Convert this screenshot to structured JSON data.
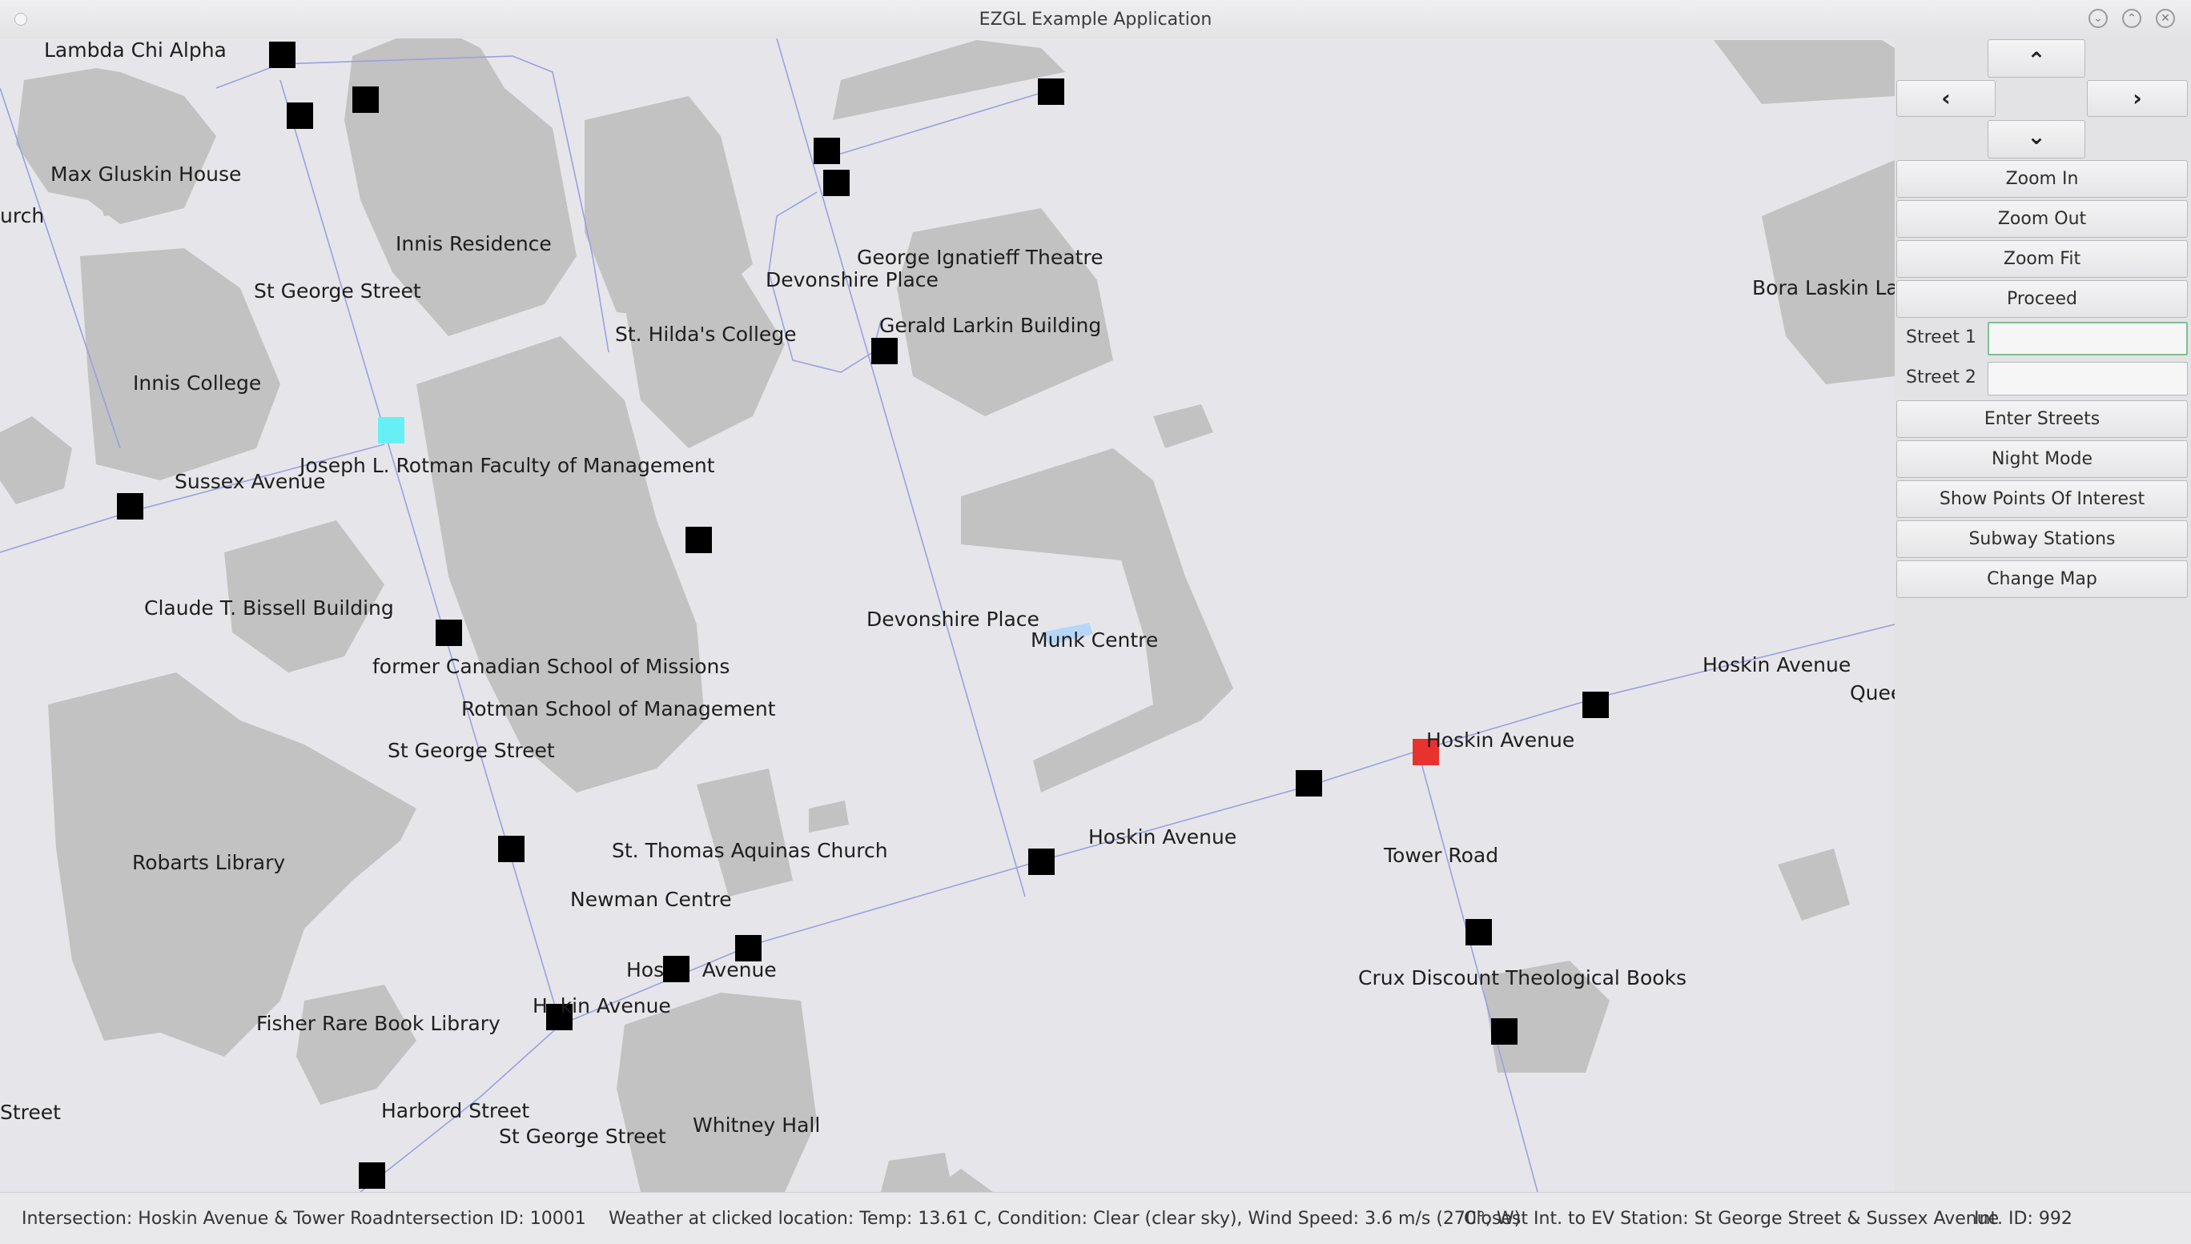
{
  "window": {
    "title": "EZGL Example Application"
  },
  "map": {
    "labels": {
      "lambda_chi_alpha": "Lambda Chi Alpha",
      "max_gluskin_house": "Max Gluskin House",
      "urch": "urch",
      "innis_residence": "Innis Residence",
      "st_george_street_1": "St George Street",
      "innis_college": "Innis College",
      "st_hildas_college": "St. Hilda's College",
      "george_ignatieff_theatre": "George Ignatieff Theatre",
      "devonshire_place_1": "Devonshire Place",
      "gerald_larkin_building": "Gerald Larkin Building",
      "bora_laskin": "Bora Laskin Law",
      "rotman_faculty": "Joseph L. Rotman Faculty of Management",
      "sussex_avenue": "Sussex Avenue",
      "claude_bissell": "Claude T. Bissell Building",
      "devonshire_place_2": "Devonshire Place",
      "munk_centre": "Munk Centre",
      "former_canadian_school": "former Canadian School of Missions",
      "hoskin_avenue_1": "Hoskin Avenue",
      "queens": "Quee",
      "hoskin_avenue_2": "Hoskin Avenue",
      "rotman_school": "Rotman School of Management",
      "st_george_street_2": "St George Street",
      "hoskin_avenue_3": "Hoskin Avenue",
      "tower_road": "Tower Road",
      "st_thomas_aquinas": "St. Thomas Aquinas Church",
      "robarts_library": "Robarts Library",
      "newman_centre": "Newman Centre",
      "hoskin_avenue_4": "Hos      Avenue",
      "crux_books": "Crux Discount Theological Books",
      "hoskin_avenue_5": "H  kin Avenue",
      "fisher_library": "Fisher Rare Book Library",
      "street_left": "Street",
      "harbord_street": "Harbord Street",
      "st_george_street_3": "St George Street",
      "whitney_hall": "Whitney Hall"
    }
  },
  "panel": {
    "nav": {
      "up": "⌃",
      "left": "‹",
      "right": "›",
      "down": "⌄"
    },
    "zoom_in": "Zoom In",
    "zoom_out": "Zoom Out",
    "zoom_fit": "Zoom Fit",
    "proceed": "Proceed",
    "street1_label": "Street 1",
    "street1_value": "",
    "street2_label": "Street 2",
    "street2_value": "",
    "enter_streets": "Enter Streets",
    "night_mode": "Night Mode",
    "show_poi": "Show Points Of Interest",
    "subway_stations": "Subway Stations",
    "change_map": "Change Map"
  },
  "status": {
    "intersection": "Intersection: Hoskin Avenue & Tower Road",
    "intersection_id": "Intersection ID: 10001",
    "weather": "Weather at clicked location: Temp: 13.61 C, Condition: Clear (clear sky), Wind Speed: 3.6 m/s (270°, W)",
    "closest_ev": "Closest Int. to EV Station: St George Street & Sussex Avenue",
    "int_id": "Int. ID: 992"
  },
  "colors": {
    "map_background": "#e6e6ea",
    "building": "#c2c2c2",
    "street_line": "#9aa0e0",
    "poi_marker": "#000000",
    "highlight_intersection": "#e8322e",
    "highlight_poi": "#66f0f5",
    "highlight_feature": "#b5d6f7"
  }
}
